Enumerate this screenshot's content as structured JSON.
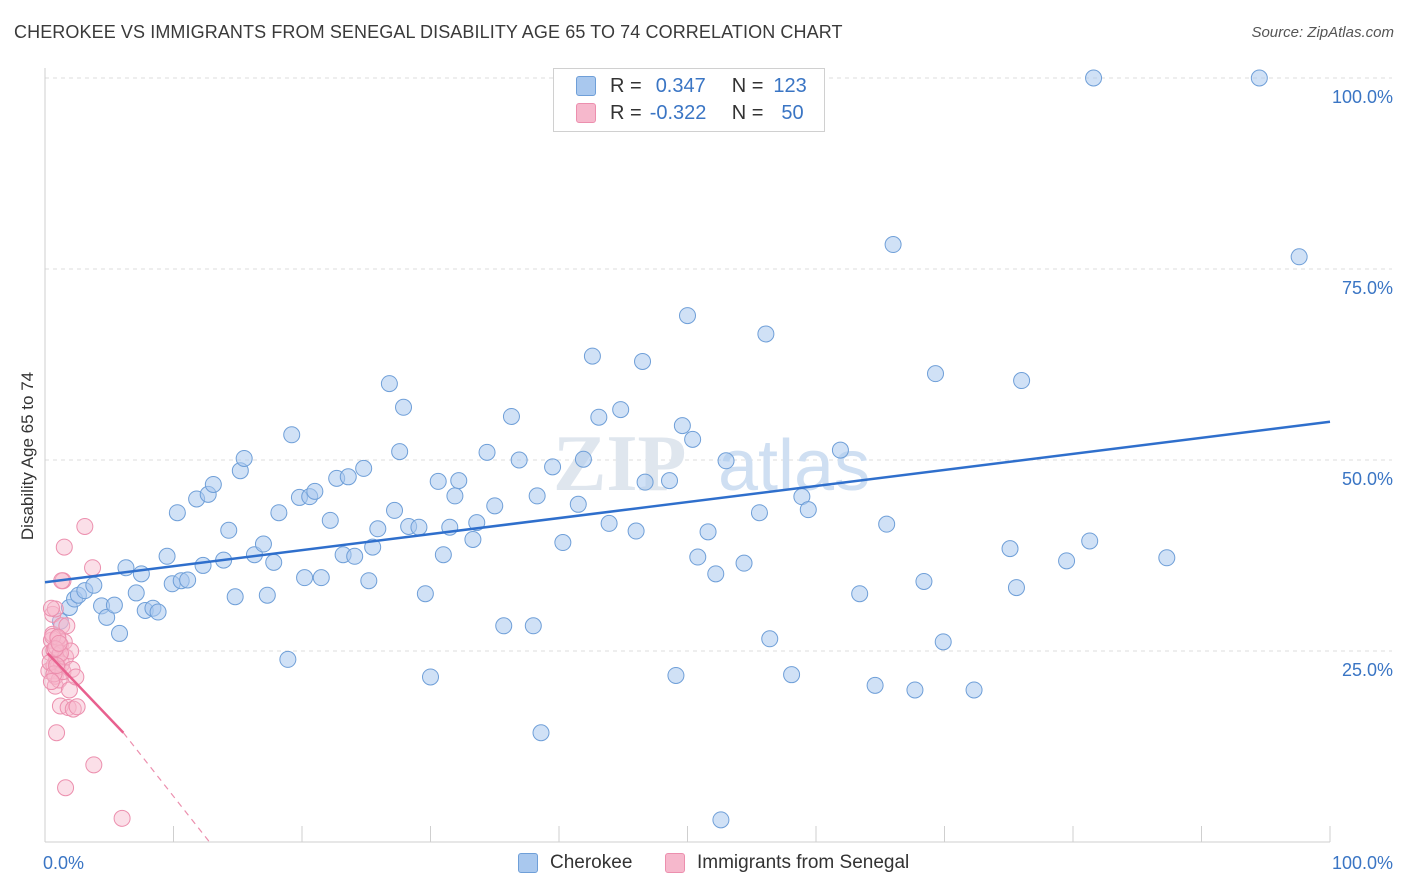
{
  "title": "CHEROKEE VS IMMIGRANTS FROM SENEGAL DISABILITY AGE 65 TO 74 CORRELATION CHART",
  "source": "Source: ZipAtlas.com",
  "watermark": {
    "zip": "ZIP",
    "atlas": "atlas"
  },
  "legend": {
    "rows": [
      {
        "r_label": "R =",
        "r_value": "0.347",
        "n_label": "N =",
        "n_value": "123"
      },
      {
        "r_label": "R =",
        "r_value": "-0.322",
        "n_label": "N =",
        "n_value": "50"
      }
    ]
  },
  "colors": {
    "cherokee_fill": "#a9c8ee",
    "cherokee_stroke": "#6f9fd8",
    "cherokee_line": "#2f6fcc",
    "senegal_fill": "#f6b8cc",
    "senegal_stroke": "#ec8fae",
    "senegal_line": "#e8608e",
    "axis_text": "#3a75c4",
    "grid": "#dcdcdc"
  },
  "chart_data": {
    "type": "scatter",
    "title": "CHEROKEE VS IMMIGRANTS FROM SENEGAL DISABILITY AGE 65 TO 74 CORRELATION CHART",
    "xlabel": "",
    "ylabel": "Disability Age 65 to 74",
    "xlim": [
      0,
      100
    ],
    "ylim": [
      0,
      100
    ],
    "x_tick_labels": [
      "0.0%",
      "100.0%"
    ],
    "y_tick_labels": [
      "25.0%",
      "50.0%",
      "75.0%",
      "100.0%"
    ],
    "y_ticks": [
      25,
      50,
      75,
      100
    ],
    "grid": true,
    "legend_position": "bottom",
    "series": [
      {
        "name": "Cherokee",
        "R": 0.347,
        "N": 123,
        "trend": {
          "x": [
            0,
            100
          ],
          "y": [
            34.0,
            55.0
          ]
        },
        "points": [
          [
            1.2,
            28.9
          ],
          [
            1.9,
            30.7
          ],
          [
            2.3,
            31.8
          ],
          [
            2.6,
            32.3
          ],
          [
            3.1,
            32.9
          ],
          [
            3.8,
            33.6
          ],
          [
            4.4,
            30.9
          ],
          [
            4.8,
            29.4
          ],
          [
            5.4,
            31.0
          ],
          [
            5.8,
            27.3
          ],
          [
            6.3,
            35.9
          ],
          [
            7.1,
            32.6
          ],
          [
            7.5,
            35.1
          ],
          [
            7.8,
            30.3
          ],
          [
            8.4,
            30.6
          ],
          [
            8.8,
            30.1
          ],
          [
            9.5,
            37.4
          ],
          [
            9.9,
            33.8
          ],
          [
            10.3,
            43.1
          ],
          [
            10.6,
            34.2
          ],
          [
            11.1,
            34.3
          ],
          [
            11.8,
            44.9
          ],
          [
            12.3,
            36.2
          ],
          [
            12.7,
            45.5
          ],
          [
            13.1,
            46.8
          ],
          [
            13.9,
            36.9
          ],
          [
            14.3,
            40.8
          ],
          [
            14.8,
            32.1
          ],
          [
            15.2,
            48.6
          ],
          [
            15.5,
            50.2
          ],
          [
            16.3,
            37.6
          ],
          [
            17.0,
            39.0
          ],
          [
            17.3,
            32.3
          ],
          [
            17.8,
            36.6
          ],
          [
            18.2,
            43.1
          ],
          [
            18.9,
            23.9
          ],
          [
            19.2,
            53.3
          ],
          [
            19.8,
            45.1
          ],
          [
            20.2,
            34.6
          ],
          [
            20.6,
            45.2
          ],
          [
            21.0,
            45.9
          ],
          [
            21.5,
            34.6
          ],
          [
            22.2,
            42.1
          ],
          [
            22.7,
            47.6
          ],
          [
            23.2,
            37.6
          ],
          [
            23.6,
            47.8
          ],
          [
            24.1,
            37.4
          ],
          [
            24.8,
            48.9
          ],
          [
            25.2,
            34.2
          ],
          [
            25.5,
            38.6
          ],
          [
            25.9,
            41.0
          ],
          [
            26.8,
            60.0
          ],
          [
            27.2,
            43.4
          ],
          [
            27.6,
            51.1
          ],
          [
            27.9,
            56.9
          ],
          [
            28.3,
            41.3
          ],
          [
            29.1,
            41.2
          ],
          [
            29.6,
            32.5
          ],
          [
            30.0,
            21.6
          ],
          [
            30.6,
            47.2
          ],
          [
            31.0,
            37.6
          ],
          [
            31.5,
            41.2
          ],
          [
            31.9,
            45.3
          ],
          [
            32.2,
            47.3
          ],
          [
            33.3,
            39.6
          ],
          [
            33.6,
            41.8
          ],
          [
            34.4,
            51.0
          ],
          [
            35.0,
            44.0
          ],
          [
            35.7,
            28.3
          ],
          [
            36.3,
            55.7
          ],
          [
            36.9,
            50.0
          ],
          [
            38.0,
            28.3
          ],
          [
            38.3,
            45.3
          ],
          [
            38.6,
            14.3
          ],
          [
            39.5,
            49.1
          ],
          [
            40.3,
            39.2
          ],
          [
            41.5,
            44.2
          ],
          [
            41.9,
            50.1
          ],
          [
            42.6,
            63.6
          ],
          [
            43.1,
            55.6
          ],
          [
            43.9,
            41.7
          ],
          [
            44.8,
            56.6
          ],
          [
            46.0,
            40.7
          ],
          [
            46.5,
            62.9
          ],
          [
            46.7,
            47.1
          ],
          [
            48.6,
            47.3
          ],
          [
            49.1,
            21.8
          ],
          [
            49.6,
            54.5
          ],
          [
            50.0,
            68.9
          ],
          [
            50.4,
            52.7
          ],
          [
            50.8,
            37.3
          ],
          [
            51.6,
            40.6
          ],
          [
            52.2,
            35.1
          ],
          [
            52.6,
            2.9
          ],
          [
            53.0,
            49.9
          ],
          [
            54.4,
            36.5
          ],
          [
            55.6,
            43.1
          ],
          [
            56.1,
            66.5
          ],
          [
            56.4,
            26.6
          ],
          [
            58.1,
            21.9
          ],
          [
            58.9,
            45.2
          ],
          [
            59.4,
            43.5
          ],
          [
            61.9,
            51.3
          ],
          [
            63.4,
            32.5
          ],
          [
            64.6,
            20.5
          ],
          [
            65.5,
            41.6
          ],
          [
            66.0,
            78.2
          ],
          [
            67.7,
            19.9
          ],
          [
            68.4,
            34.1
          ],
          [
            69.3,
            61.3
          ],
          [
            69.9,
            26.2
          ],
          [
            72.3,
            19.9
          ],
          [
            75.1,
            38.4
          ],
          [
            75.6,
            33.3
          ],
          [
            76.0,
            60.4
          ],
          [
            79.5,
            36.8
          ],
          [
            81.3,
            39.4
          ],
          [
            81.6,
            100.0
          ],
          [
            87.3,
            37.2
          ],
          [
            94.5,
            100.0
          ],
          [
            97.6,
            76.6
          ]
        ]
      },
      {
        "name": "Immigrants from Senegal",
        "R": -0.322,
        "N": 50,
        "trend": {
          "x": [
            0.2,
            6.1
          ],
          "y": [
            24.7,
            14.3
          ]
        },
        "trend_dashed": {
          "x": [
            6.1,
            12.8
          ],
          "y": [
            14.3,
            0
          ]
        },
        "points": [
          [
            0.3,
            22.4
          ],
          [
            0.4,
            24.8
          ],
          [
            0.5,
            26.4
          ],
          [
            0.6,
            27.2
          ],
          [
            0.6,
            29.8
          ],
          [
            0.7,
            23.1
          ],
          [
            0.7,
            25.1
          ],
          [
            0.8,
            20.4
          ],
          [
            0.8,
            21.7
          ],
          [
            0.8,
            30.5
          ],
          [
            0.9,
            23.8
          ],
          [
            0.9,
            25.5
          ],
          [
            1.0,
            22.9
          ],
          [
            1.0,
            26.6
          ],
          [
            1.1,
            21.2
          ],
          [
            1.1,
            24.4
          ],
          [
            1.2,
            17.8
          ],
          [
            1.2,
            25.8
          ],
          [
            1.3,
            23.3
          ],
          [
            1.3,
            28.3
          ],
          [
            1.4,
            22.3
          ],
          [
            1.4,
            34.2
          ],
          [
            1.5,
            38.6
          ],
          [
            1.5,
            26.2
          ],
          [
            1.6,
            24.2
          ],
          [
            1.7,
            28.3
          ],
          [
            1.8,
            17.6
          ],
          [
            1.9,
            19.9
          ],
          [
            2.0,
            25.0
          ],
          [
            2.1,
            22.6
          ],
          [
            2.2,
            17.4
          ],
          [
            2.4,
            21.6
          ],
          [
            2.5,
            17.7
          ],
          [
            3.1,
            41.3
          ],
          [
            3.7,
            35.9
          ],
          [
            3.8,
            10.1
          ],
          [
            6.0,
            3.1
          ],
          [
            1.6,
            7.1
          ],
          [
            0.9,
            14.3
          ],
          [
            0.5,
            30.6
          ],
          [
            0.6,
            26.9
          ],
          [
            1.0,
            26.8
          ],
          [
            1.2,
            24.7
          ],
          [
            0.4,
            23.5
          ],
          [
            0.8,
            25.3
          ],
          [
            1.3,
            34.2
          ],
          [
            0.7,
            22.0
          ],
          [
            1.1,
            26.0
          ],
          [
            0.9,
            23.1
          ],
          [
            0.5,
            21.0
          ]
        ]
      }
    ]
  },
  "bottom_legend": {
    "cherokee": "Cherokee",
    "senegal": "Immigrants from Senegal"
  }
}
